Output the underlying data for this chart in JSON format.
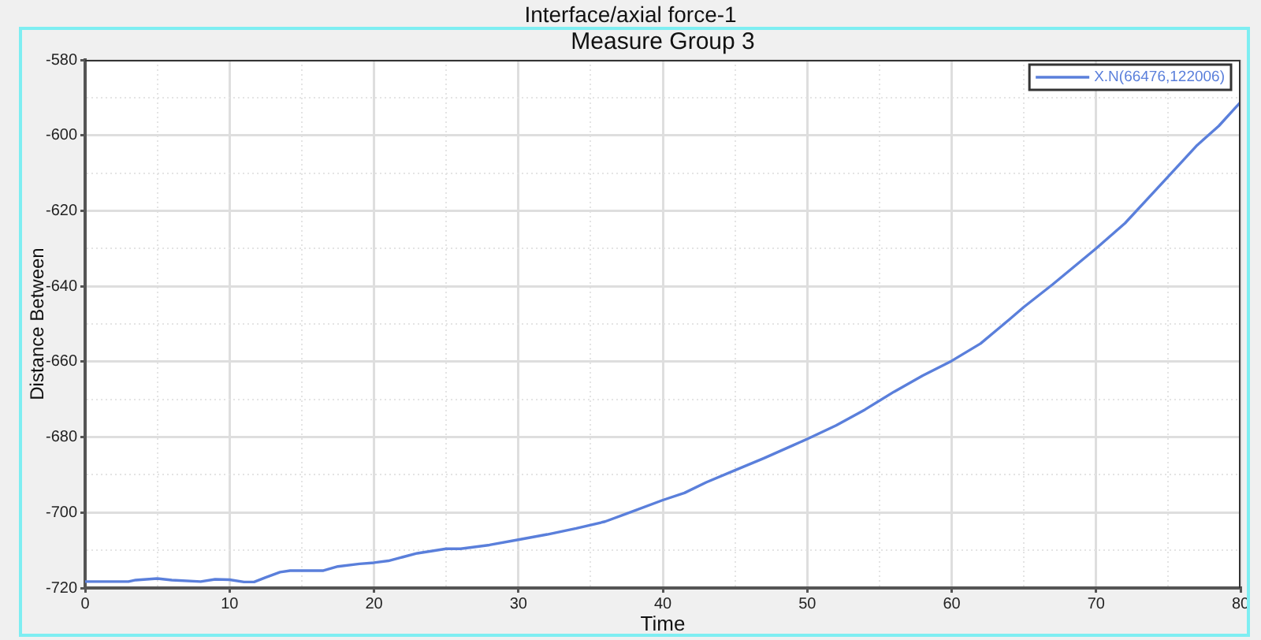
{
  "chart_data": {
    "type": "line",
    "title": "Interface/axial force-1",
    "subtitle": "Measure Group 3",
    "xlabel": "Time",
    "ylabel": "Distance Between",
    "x": [
      0,
      3,
      3.5,
      5,
      6,
      8,
      9,
      10,
      11,
      11.7,
      12.5,
      13.5,
      14.2,
      16.5,
      17.5,
      19,
      20,
      21,
      22,
      23,
      25,
      26,
      28,
      30,
      32,
      34,
      36,
      37.5,
      40,
      41.5,
      43,
      45,
      47,
      49,
      50,
      52,
      54,
      56,
      58,
      60,
      62,
      64,
      65,
      67,
      70,
      72,
      75,
      77,
      78.5,
      80
    ],
    "series": [
      {
        "name": "X.N(66476,122006)",
        "color": "#5a7fdb",
        "values": [
          -718.3,
          -718.3,
          -717.9,
          -717.5,
          -717.9,
          -718.3,
          -717.7,
          -717.8,
          -718.4,
          -718.4,
          -717.2,
          -715.8,
          -715.4,
          -715.4,
          -714.3,
          -713.6,
          -713.3,
          -712.8,
          -711.8,
          -710.8,
          -709.6,
          -709.6,
          -708.6,
          -707.2,
          -705.8,
          -704.2,
          -702.4,
          -700.3,
          -696.7,
          -694.8,
          -692.0,
          -688.8,
          -685.6,
          -682.2,
          -680.5,
          -676.9,
          -672.7,
          -668.0,
          -663.7,
          -659.8,
          -655.2,
          -648.8,
          -645.5,
          -639.5,
          -630.0,
          -623.3,
          -610.9,
          -602.6,
          -597.5,
          -591.2
        ]
      }
    ],
    "xlim": [
      0,
      80
    ],
    "ylim": [
      -720,
      -580
    ],
    "xticks": [
      0,
      {
        "value": 5,
        "label": null
      },
      10,
      {
        "value": 15,
        "label": null
      },
      20,
      {
        "value": 25,
        "label": null
      },
      30,
      {
        "value": 35,
        "label": null
      },
      40,
      {
        "value": 45,
        "label": null
      },
      50,
      {
        "value": 55,
        "label": null
      },
      60,
      {
        "value": 65,
        "label": null
      },
      70,
      {
        "value": 75,
        "label": null
      },
      80
    ],
    "yticks": [
      -720,
      {
        "value": -710,
        "label": null
      },
      -700,
      {
        "value": -690,
        "label": null
      },
      -680,
      {
        "value": -670,
        "label": null
      },
      -660,
      {
        "value": -650,
        "label": null
      },
      -640,
      {
        "value": -630,
        "label": null
      },
      -620,
      {
        "value": -610,
        "label": null
      },
      -600,
      {
        "value": -590,
        "label": null
      },
      -580
    ],
    "grid": true,
    "legend": "top right"
  }
}
